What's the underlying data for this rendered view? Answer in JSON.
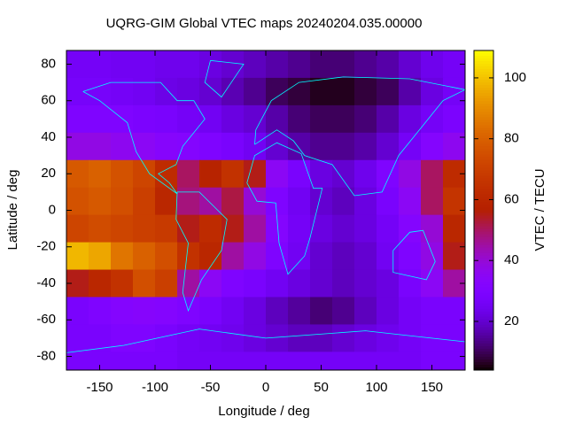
{
  "chart_data": {
    "type": "heatmap",
    "title": "UQRG-GIM Global VTEC maps 20240204.035.00000",
    "xlabel": "Longitude / deg",
    "ylabel": "Latitude / deg",
    "colorbar_label": "VTEC / TECU",
    "x": [
      -170,
      -150,
      -130,
      -110,
      -90,
      -70,
      -50,
      -30,
      -10,
      10,
      30,
      50,
      70,
      90,
      110,
      130,
      150,
      170
    ],
    "y": [
      80,
      65,
      50,
      35,
      20,
      5,
      -10,
      -25,
      -40,
      -55,
      -70,
      -85
    ],
    "values": [
      [
        26,
        26,
        25,
        25,
        24,
        24,
        22,
        20,
        18,
        16,
        14,
        12,
        12,
        14,
        16,
        20,
        24,
        26
      ],
      [
        27,
        27,
        26,
        25,
        23,
        22,
        20,
        17,
        14,
        10,
        8,
        6,
        6,
        8,
        10,
        16,
        22,
        26
      ],
      [
        30,
        30,
        30,
        29,
        28,
        26,
        25,
        22,
        20,
        16,
        12,
        10,
        10,
        12,
        16,
        22,
        26,
        29
      ],
      [
        38,
        38,
        36,
        35,
        33,
        32,
        30,
        28,
        25,
        20,
        16,
        14,
        14,
        16,
        20,
        26,
        32,
        36
      ],
      [
        78,
        80,
        76,
        72,
        62,
        50,
        58,
        65,
        55,
        35,
        28,
        22,
        20,
        24,
        30,
        38,
        50,
        62
      ],
      [
        76,
        78,
        75,
        70,
        60,
        48,
        45,
        52,
        40,
        30,
        25,
        20,
        18,
        22,
        28,
        35,
        50,
        66
      ],
      [
        72,
        74,
        72,
        70,
        68,
        55,
        62,
        55,
        45,
        32,
        26,
        22,
        20,
        22,
        26,
        32,
        40,
        60
      ],
      [
        98,
        95,
        85,
        80,
        75,
        65,
        60,
        45,
        38,
        30,
        25,
        20,
        18,
        20,
        25,
        30,
        38,
        55
      ],
      [
        55,
        60,
        65,
        75,
        70,
        45,
        35,
        30,
        28,
        25,
        22,
        20,
        18,
        20,
        22,
        28,
        35,
        45
      ],
      [
        28,
        30,
        32,
        33,
        32,
        30,
        28,
        25,
        22,
        18,
        15,
        12,
        14,
        18,
        22,
        26,
        28,
        28
      ],
      [
        28,
        28,
        30,
        30,
        28,
        26,
        25,
        24,
        22,
        20,
        18,
        18,
        20,
        22,
        24,
        26,
        28,
        28
      ],
      [
        28,
        28,
        28,
        28,
        28,
        26,
        26,
        26,
        26,
        26,
        26,
        26,
        26,
        26,
        26,
        26,
        28,
        28
      ]
    ],
    "xlim": [
      -180,
      180
    ],
    "ylim": [
      -87.5,
      87.5
    ],
    "xticks": [
      -150,
      -100,
      -50,
      0,
      50,
      100,
      150
    ],
    "yticks": [
      -80,
      -60,
      -40,
      -20,
      0,
      20,
      40,
      60,
      80
    ],
    "clim": [
      4,
      109
    ],
    "cticks": [
      20,
      40,
      60,
      80,
      100
    ]
  }
}
